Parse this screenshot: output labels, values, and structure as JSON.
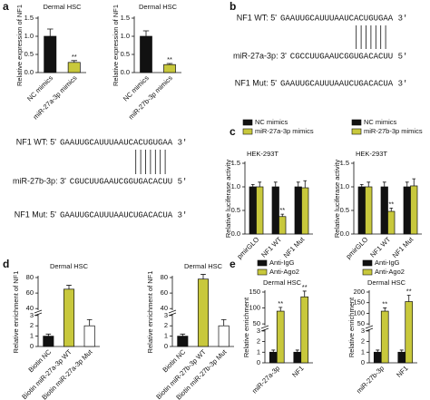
{
  "panel_labels": [
    "a",
    "b",
    "c",
    "d",
    "e"
  ],
  "sequences": [
    {
      "rows": [
        {
          "label": "NF1 WT: 5'",
          "parts": [
            {
              "text": "GAAUUGCAUUUAAUC",
              "color": "#111111"
            },
            {
              "text": "ACUGUGA",
              "color": "#e0201c"
            },
            {
              "text": "A 3'",
              "color": "#111111"
            }
          ]
        },
        {
          "label": "miR-27a-3p: 3'",
          "parts": [
            {
              "text": "CGCCUUGAAUCGG",
              "color": "#111111"
            },
            {
              "text": "UGACACU",
              "color": "#e0201c"
            },
            {
              "text": "U 5'",
              "color": "#111111"
            }
          ]
        },
        {
          "label": "NF1 Mut: 5'",
          "parts": [
            {
              "text": "GAAUUGCAUUUAAUC",
              "color": "#111111"
            },
            {
              "text": "UGACACU",
              "color": "#e0201c"
            },
            {
              "text": "A 3'",
              "color": "#111111"
            }
          ]
        }
      ]
    },
    {
      "rows": [
        {
          "label": "NF1 WT: 5'",
          "parts": [
            {
              "text": "GAAUUGCAUUUAAUC",
              "color": "#111111"
            },
            {
              "text": "ACUGUGA",
              "color": "#e0201c"
            },
            {
              "text": "A 3'",
              "color": "#111111"
            }
          ]
        },
        {
          "label": "miR-27b-3p: 3'",
          "parts": [
            {
              "text": "CGUCUUGAAUCGG",
              "color": "#111111"
            },
            {
              "text": "UGACACU",
              "color": "#e0201c"
            },
            {
              "text": "U 5'",
              "color": "#111111"
            }
          ]
        },
        {
          "label": "NF1 Mut: 5'",
          "parts": [
            {
              "text": "GAAUUGCAUUUAAUC",
              "color": "#111111"
            },
            {
              "text": "UGACACU",
              "color": "#e0201c"
            },
            {
              "text": "A 3'",
              "color": "#111111"
            }
          ]
        }
      ]
    }
  ],
  "chart_data": [
    {
      "type": "bar",
      "title": "Dermal HSC",
      "ylabel": "Relative expression of NF1",
      "categories": [
        "NC mimics",
        "miR-27a-3p mimics"
      ],
      "values": [
        1.0,
        0.28
      ],
      "errors": [
        0.2,
        0.05
      ],
      "colors": [
        "#111111",
        "#c8c83c"
      ],
      "annotations": [
        null,
        "**"
      ],
      "ylim": [
        0,
        1.5
      ],
      "yticks": [
        {
          "value": 0,
          "label": "0.0"
        },
        {
          "value": 0.5,
          "label": "0.5"
        },
        {
          "value": 1,
          "label": "1.0"
        },
        {
          "value": 1.5,
          "label": "1.5"
        }
      ]
    },
    {
      "type": "bar",
      "title": "Dermal HSC",
      "ylabel": "Relative expression of NF1",
      "categories": [
        "NC mimics",
        "miR-27b-3p mimics"
      ],
      "values": [
        1.0,
        0.22
      ],
      "errors": [
        0.15,
        0.03
      ],
      "colors": [
        "#111111",
        "#c8c83c"
      ],
      "annotations": [
        null,
        "**"
      ],
      "ylim": [
        0,
        1.5
      ],
      "yticks": [
        {
          "value": 0,
          "label": "0.0"
        },
        {
          "value": 0.5,
          "label": "0.5"
        },
        {
          "value": 1,
          "label": "1.0"
        },
        {
          "value": 1.5,
          "label": "1.5"
        }
      ]
    },
    {
      "type": "grouped_bar",
      "title": "HEK-293T",
      "ylabel": "Relative luciferase activity",
      "categories": [
        "pmirGLO",
        "NF1 WT",
        "NF1 Mut"
      ],
      "series": [
        {
          "name": "NC mimics",
          "color": "#111111",
          "values": [
            1.0,
            1.0,
            1.0
          ],
          "errors": [
            0.05,
            0.1,
            0.1
          ],
          "annotations": [
            null,
            null,
            null
          ]
        },
        {
          "name": "miR-27a-3p mimics",
          "color": "#c8c83c",
          "values": [
            1.0,
            0.37,
            0.98
          ],
          "errors": [
            0.1,
            0.05,
            0.15
          ],
          "annotations": [
            null,
            "**",
            null
          ]
        }
      ],
      "ylim": [
        0,
        1.5
      ],
      "yticks": [
        {
          "value": 0,
          "label": "0.0"
        },
        {
          "value": 0.5,
          "label": "0.5"
        },
        {
          "value": 1,
          "label": "1.0"
        },
        {
          "value": 1.5,
          "label": "1.5"
        }
      ]
    },
    {
      "type": "grouped_bar",
      "title": "HEK-293T",
      "ylabel": "Relative luciferase activity",
      "categories": [
        "pmirGLO",
        "NF1 WT",
        "NF1 Mut"
      ],
      "series": [
        {
          "name": "NC mimics",
          "color": "#111111",
          "values": [
            1.0,
            1.0,
            1.0
          ],
          "errors": [
            0.05,
            0.1,
            0.1
          ],
          "annotations": [
            null,
            null,
            null
          ]
        },
        {
          "name": "miR-27b-3p mimics",
          "color": "#c8c83c",
          "values": [
            1.0,
            0.48,
            1.02
          ],
          "errors": [
            0.1,
            0.07,
            0.15
          ],
          "annotations": [
            null,
            "**",
            null
          ]
        }
      ],
      "ylim": [
        0,
        1.5
      ],
      "yticks": [
        {
          "value": 0,
          "label": "0.0"
        },
        {
          "value": 0.5,
          "label": "0.5"
        },
        {
          "value": 1,
          "label": "1.0"
        },
        {
          "value": 1.5,
          "label": "1.5"
        }
      ]
    },
    {
      "type": "bar",
      "title": "Dermal HSC",
      "ylabel": "Relative enrichment of NF1",
      "categories": [
        "Biotin NC",
        "Biotin miR-27a-3p WT",
        "Biotin miR-27a-3p Mut"
      ],
      "values": [
        1.0,
        65,
        2.0
      ],
      "errors": [
        0.2,
        5,
        0.6
      ],
      "colors": [
        "#111111",
        "#c8c83c",
        "#ffffff"
      ],
      "ylim": [
        0,
        80
      ],
      "yticks": [
        0,
        1,
        2,
        3,
        40,
        60,
        80
      ],
      "ybreak": [
        3,
        40
      ]
    },
    {
      "type": "bar",
      "title": "Dermal HSC",
      "ylabel": "Relative enrichment of NF1",
      "categories": [
        "Biotin NC",
        "Biotin miR-27b-3p WT",
        "Biotin miR-27b-3p Mut"
      ],
      "values": [
        1.0,
        78,
        2.0
      ],
      "errors": [
        0.2,
        6,
        0.6
      ],
      "colors": [
        "#111111",
        "#c8c83c",
        "#ffffff"
      ],
      "ylim": [
        0,
        80
      ],
      "yticks": [
        0,
        1,
        2,
        3,
        40,
        60,
        80
      ],
      "ybreak": [
        3,
        40
      ]
    },
    {
      "type": "grouped_bar",
      "title": "Dermal HSC",
      "ylabel": "Relative enrichment",
      "categories": [
        "miR-27a-3p",
        "NF1"
      ],
      "series": [
        {
          "name": "Anti-IgG",
          "color": "#111111",
          "values": [
            1.0,
            1.0
          ],
          "errors": [
            0.2,
            0.2
          ],
          "annotations": [
            null,
            null
          ]
        },
        {
          "name": "Anti-Ago2",
          "color": "#c8c83c",
          "values": [
            90,
            135
          ],
          "errors": [
            12,
            18
          ],
          "annotations": [
            "**",
            "**"
          ]
        }
      ],
      "ylim": [
        0,
        150
      ],
      "yticks": [
        0,
        1,
        2,
        3,
        50,
        100,
        150
      ],
      "ybreak": [
        3,
        50
      ]
    },
    {
      "type": "grouped_bar",
      "title": "Dermal HSC",
      "ylabel": "Relative enrichment",
      "categories": [
        "miR-27b-3p",
        "NF1"
      ],
      "series": [
        {
          "name": "Anti-IgG",
          "color": "#111111",
          "values": [
            1.0,
            1.0
          ],
          "errors": [
            0.2,
            0.2
          ],
          "annotations": [
            null,
            null
          ]
        },
        {
          "name": "Anti-Ago2",
          "color": "#c8c83c",
          "values": [
            110,
            155
          ],
          "errors": [
            15,
            30
          ],
          "annotations": [
            "**",
            "**"
          ]
        }
      ],
      "ylim": [
        0,
        200
      ],
      "yticks": [
        0,
        1,
        2,
        3,
        50,
        100,
        150,
        200
      ],
      "ybreak": [
        3,
        50
      ]
    }
  ]
}
